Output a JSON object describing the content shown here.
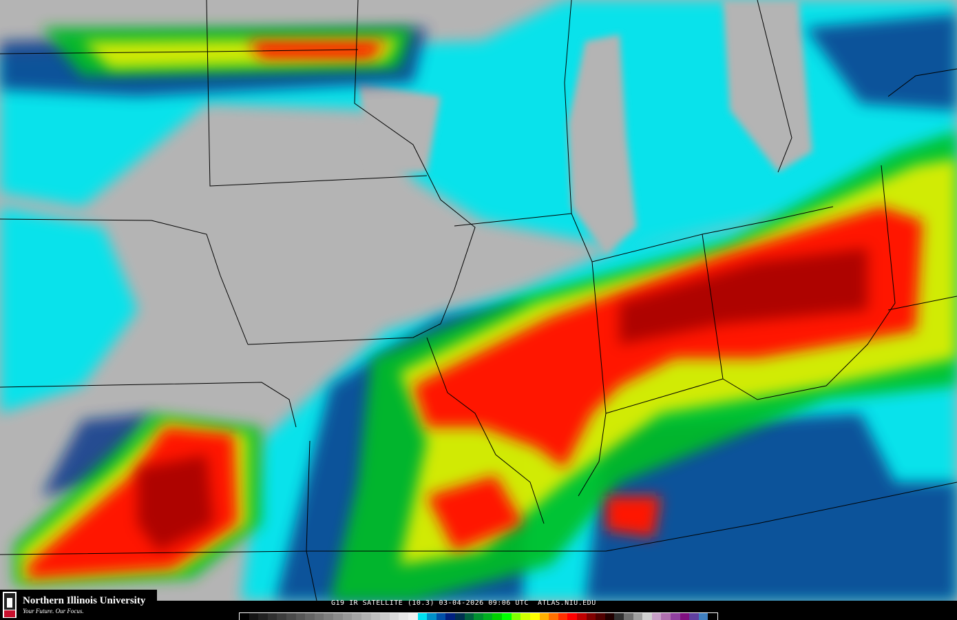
{
  "header": {
    "caption": "G19 IR SATELLITE (10.3) 03-04-2026 09:06 UTC  ATLAS.NIU.EDU"
  },
  "logo": {
    "university": "Northern Illinois University",
    "tagline": "Your Future. Our Focus.",
    "mark": "NIU"
  },
  "colors": {
    "background_clear": "#b4b4b4",
    "cyan": "#00e5ee",
    "blue": "#0a3a8c",
    "green": "#00c020",
    "yellow": "#e8f000",
    "orange": "#ff9a00",
    "red": "#ff1800",
    "dark_red": "#a00000",
    "borders": "#000000"
  },
  "colorbar": [
    "#000000",
    "#151515",
    "#222222",
    "#303030",
    "#3d3d3d",
    "#4a4a4a",
    "#575757",
    "#646464",
    "#717171",
    "#7e7e7e",
    "#8b8b8b",
    "#989898",
    "#a5a5a5",
    "#b2b2b2",
    "#bfbfbf",
    "#cccccc",
    "#d9d9d9",
    "#e6e6e6",
    "#f0f0f0",
    "#00e0f0",
    "#0090c8",
    "#0050a8",
    "#002080",
    "#003050",
    "#006040",
    "#009030",
    "#00b020",
    "#00d000",
    "#00ff00",
    "#80ff00",
    "#d0ff00",
    "#ffff00",
    "#ffb000",
    "#ff7000",
    "#ff3000",
    "#ff0000",
    "#c00000",
    "#800000",
    "#500000",
    "#200000",
    "#303030",
    "#707070",
    "#a0a0a0",
    "#d0d0d0",
    "#c8a0c8",
    "#b070b0",
    "#9040a0",
    "#801080",
    "#6040a0",
    "#4080c0",
    "#000000"
  ]
}
